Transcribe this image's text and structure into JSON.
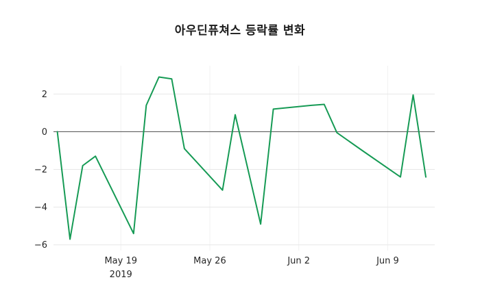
{
  "chart_data": {
    "type": "line",
    "title": "아우딘퓨쳐스 등락률 변화",
    "xlabel": "",
    "ylabel": "",
    "x": [
      "2019-05-14",
      "2019-05-15",
      "2019-05-16",
      "2019-05-17",
      "2019-05-20",
      "2019-05-21",
      "2019-05-22",
      "2019-05-23",
      "2019-05-24",
      "2019-05-27",
      "2019-05-28",
      "2019-05-29",
      "2019-05-30",
      "2019-05-31",
      "2019-06-03",
      "2019-06-04",
      "2019-06-05",
      "2019-06-07",
      "2019-06-10",
      "2019-06-11",
      "2019-06-12"
    ],
    "values": [
      0.0,
      -5.7,
      -1.8,
      -1.3,
      -5.4,
      1.4,
      2.9,
      2.8,
      -0.9,
      -3.1,
      0.9,
      -2.0,
      -4.9,
      1.2,
      1.4,
      1.45,
      -0.05,
      -1.0,
      -2.4,
      1.95,
      -2.4
    ],
    "line_color": "#159a54",
    "grid": true,
    "grid_color": "#e7e7e7",
    "zero_line": true,
    "zero_line_color": "#4d4d4d",
    "legend": "none",
    "xlim": [
      "2019-05-13",
      "2019-06-13"
    ],
    "ylim": [
      -6.3,
      3.5
    ],
    "yticks": [
      2,
      0,
      -2,
      -4,
      -6
    ],
    "ytick_labels": [
      "2",
      "0",
      "−2",
      "−4",
      "−6"
    ],
    "xticks": [
      "2019-05-19",
      "2019-05-26",
      "2019-06-02",
      "2019-06-09"
    ],
    "xtick_labels": [
      "May 19",
      "May 26",
      "Jun 2",
      "Jun 9"
    ],
    "xtick_sublabels": [
      "2019",
      "",
      "",
      ""
    ]
  }
}
